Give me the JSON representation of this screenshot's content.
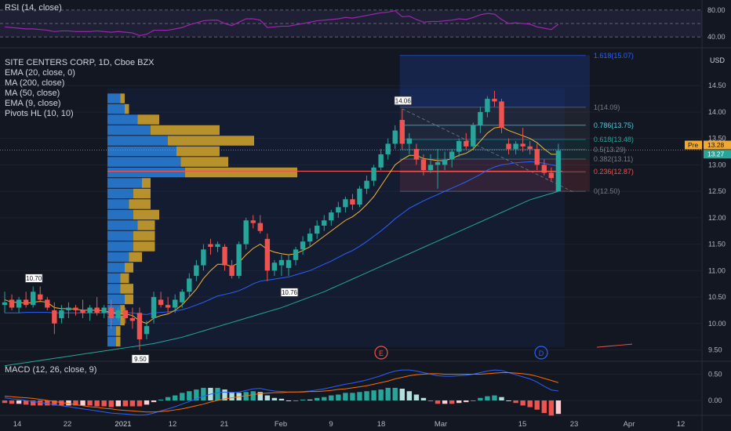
{
  "rsi": {
    "label": "RSI (14, close)",
    "ticks": [
      "80.00",
      "40.00"
    ]
  },
  "main": {
    "legend": [
      "SITE CENTERS CORP, 1D, Cboe BZX",
      "EMA (20, close, 0)",
      "MA (200, close)",
      "MA (50, close)",
      "EMA (9, close)",
      "Pivots HL (10, 10)"
    ],
    "currency": "USD",
    "y_ticks": [
      "14.50",
      "14.00",
      "13.50",
      "13.00",
      "12.50",
      "12.00",
      "11.50",
      "11.00",
      "10.50",
      "10.00",
      "9.50"
    ],
    "price_tags": {
      "pre_label": "Pre",
      "pre_value": "13.28",
      "last_value": "13.27"
    },
    "pivot_labels": [
      "10.70",
      "9.50",
      "10.76",
      "14.06"
    ],
    "fib_labels": [
      "1.618(15.07)",
      "1(14.09)",
      "0.786(13.75)",
      "0.618(13.48)",
      "0.5(13.29)",
      "0.382(13.11)",
      "0.236(12.87)",
      "0(12.50)"
    ],
    "event_markers": [
      "E",
      "D"
    ]
  },
  "macd": {
    "label": "MACD (12, 26, close, 9)",
    "ticks": [
      "0.50",
      "0.00"
    ]
  },
  "time_axis": [
    "14",
    "22",
    "2021",
    "12",
    "21",
    "Feb",
    "9",
    "18",
    "Mar",
    "15",
    "23",
    "Apr",
    "12"
  ],
  "colors": {
    "up": "#26a69a",
    "down": "#ef5350",
    "ema20": "#f7b731",
    "ma200": "#26a69a",
    "ma50": "#2962ff",
    "ema9": "#f7b731",
    "rsi": "#9c27b0",
    "macd": "#2962ff",
    "signal": "#ff6d00"
  },
  "chart_data": {
    "type": "candlestick",
    "title": "SITE CENTERS CORP, 1D, Cboe BZX",
    "ylabel": "USD",
    "ylim": [
      9.3,
      15.2
    ],
    "ohlc": [
      [
        10.35,
        10.6,
        10.2,
        10.4
      ],
      [
        10.45,
        10.55,
        10.25,
        10.3
      ],
      [
        10.3,
        10.5,
        10.2,
        10.45
      ],
      [
        10.45,
        10.6,
        10.3,
        10.35
      ],
      [
        10.35,
        10.7,
        10.3,
        10.6
      ],
      [
        10.55,
        10.7,
        10.4,
        10.45
      ],
      [
        10.45,
        10.5,
        10.25,
        10.3
      ],
      [
        10.25,
        10.4,
        9.8,
        10.0
      ],
      [
        10.1,
        10.35,
        10.0,
        10.25
      ],
      [
        10.25,
        10.4,
        10.1,
        10.3
      ],
      [
        10.3,
        10.35,
        10.15,
        10.25
      ],
      [
        10.25,
        10.45,
        10.1,
        10.2
      ],
      [
        10.2,
        10.35,
        10.05,
        10.3
      ],
      [
        10.3,
        10.5,
        10.15,
        10.2
      ],
      [
        10.2,
        10.35,
        10.1,
        10.3
      ],
      [
        10.3,
        10.45,
        9.9,
        10.1
      ],
      [
        10.1,
        10.3,
        10.05,
        10.25
      ],
      [
        10.25,
        10.3,
        10.0,
        10.1
      ],
      [
        10.1,
        10.3,
        9.9,
        10.05
      ],
      [
        10.2,
        10.3,
        9.5,
        9.7
      ],
      [
        9.8,
        10.05,
        9.7,
        9.95
      ],
      [
        10.1,
        10.6,
        10.0,
        10.5
      ],
      [
        10.45,
        10.6,
        10.3,
        10.35
      ],
      [
        10.35,
        10.5,
        10.2,
        10.3
      ],
      [
        10.3,
        10.55,
        10.2,
        10.45
      ],
      [
        10.4,
        10.65,
        10.3,
        10.6
      ],
      [
        10.6,
        10.95,
        10.5,
        10.85
      ],
      [
        10.9,
        11.2,
        10.8,
        11.1
      ],
      [
        11.1,
        11.5,
        11.0,
        11.4
      ],
      [
        11.5,
        11.6,
        11.3,
        11.45
      ],
      [
        11.45,
        11.55,
        11.35,
        11.5
      ],
      [
        11.45,
        11.5,
        11.0,
        11.1
      ],
      [
        11.1,
        11.2,
        10.85,
        10.9
      ],
      [
        10.9,
        11.55,
        10.85,
        11.5
      ],
      [
        11.5,
        12.0,
        11.4,
        11.95
      ],
      [
        11.95,
        12.05,
        11.8,
        11.9
      ],
      [
        11.9,
        12.05,
        11.7,
        11.75
      ],
      [
        11.6,
        11.7,
        10.8,
        11.0
      ],
      [
        11.0,
        11.2,
        10.9,
        11.15
      ],
      [
        11.1,
        11.3,
        10.9,
        11.2
      ],
      [
        11.05,
        11.3,
        10.9,
        11.2
      ],
      [
        11.2,
        11.45,
        11.1,
        11.4
      ],
      [
        11.4,
        11.65,
        11.3,
        11.55
      ],
      [
        11.55,
        11.8,
        11.45,
        11.7
      ],
      [
        11.7,
        11.95,
        11.6,
        11.85
      ],
      [
        11.85,
        12.05,
        11.75,
        11.95
      ],
      [
        11.95,
        12.15,
        11.85,
        12.1
      ],
      [
        12.1,
        12.3,
        12.0,
        12.2
      ],
      [
        12.2,
        12.4,
        12.1,
        12.35
      ],
      [
        12.35,
        12.45,
        12.15,
        12.25
      ],
      [
        12.25,
        12.6,
        12.2,
        12.55
      ],
      [
        12.55,
        12.8,
        12.45,
        12.7
      ],
      [
        12.7,
        13.0,
        12.6,
        12.95
      ],
      [
        12.95,
        13.3,
        12.9,
        13.2
      ],
      [
        13.2,
        13.5,
        13.1,
        13.4
      ],
      [
        13.4,
        13.75,
        13.3,
        13.65
      ],
      [
        13.85,
        14.06,
        13.3,
        13.4
      ],
      [
        13.4,
        13.6,
        13.2,
        13.5
      ],
      [
        13.3,
        13.4,
        13.0,
        13.1
      ],
      [
        13.1,
        13.2,
        12.8,
        12.9
      ],
      [
        12.9,
        13.2,
        12.85,
        13.0
      ],
      [
        13.0,
        13.3,
        12.55,
        13.05
      ],
      [
        13.0,
        13.25,
        12.9,
        13.1
      ],
      [
        13.1,
        13.3,
        12.95,
        13.25
      ],
      [
        13.25,
        13.5,
        13.15,
        13.45
      ],
      [
        13.45,
        13.6,
        13.3,
        13.35
      ],
      [
        13.35,
        13.8,
        13.3,
        13.75
      ],
      [
        13.75,
        14.1,
        13.6,
        14.0
      ],
      [
        14.0,
        14.3,
        13.9,
        14.25
      ],
      [
        14.25,
        14.4,
        14.1,
        14.2
      ],
      [
        14.2,
        14.25,
        13.6,
        13.7
      ],
      [
        13.4,
        13.5,
        13.2,
        13.3
      ],
      [
        13.3,
        13.45,
        13.2,
        13.4
      ],
      [
        13.4,
        13.7,
        13.25,
        13.35
      ],
      [
        13.35,
        13.45,
        13.2,
        13.3
      ],
      [
        13.3,
        13.4,
        12.9,
        13.0
      ],
      [
        13.0,
        13.1,
        12.8,
        12.85
      ],
      [
        12.85,
        12.95,
        12.7,
        12.75
      ],
      [
        12.5,
        13.4,
        12.5,
        13.27
      ]
    ],
    "ema9": [
      10.45,
      10.4,
      10.4,
      10.38,
      10.4,
      10.42,
      10.4,
      10.3,
      10.28,
      10.28,
      10.27,
      10.25,
      10.25,
      10.25,
      10.24,
      10.2,
      10.2,
      10.18,
      10.15,
      10.05,
      10.0,
      10.1,
      10.15,
      10.18,
      10.25,
      10.35,
      10.5,
      10.65,
      10.85,
      11.0,
      11.12,
      11.12,
      11.08,
      11.15,
      11.3,
      11.42,
      11.5,
      11.4,
      11.35,
      11.32,
      11.3,
      11.32,
      11.38,
      11.45,
      11.55,
      11.65,
      11.75,
      11.85,
      11.95,
      12.02,
      12.12,
      12.25,
      12.4,
      12.6,
      12.8,
      13.0,
      13.1,
      13.18,
      13.18,
      13.12,
      13.1,
      13.08,
      13.08,
      13.12,
      13.18,
      13.22,
      13.3,
      13.45,
      13.6,
      13.7,
      13.72,
      13.65,
      13.6,
      13.55,
      13.5,
      13.42,
      13.3,
      13.2,
      13.2
    ],
    "ma50": [
      10.2,
      10.2,
      10.2,
      10.21,
      10.21,
      10.21,
      10.21,
      10.2,
      10.2,
      10.2,
      10.2,
      10.2,
      10.2,
      10.2,
      10.2,
      10.2,
      10.2,
      10.2,
      10.2,
      10.18,
      10.17,
      10.2,
      10.21,
      10.22,
      10.24,
      10.26,
      10.3,
      10.35,
      10.4,
      10.46,
      10.52,
      10.55,
      10.58,
      10.62,
      10.68,
      10.75,
      10.8,
      10.82,
      10.84,
      10.86,
      10.88,
      10.92,
      10.96,
      11.0,
      11.06,
      11.12,
      11.18,
      11.25,
      11.32,
      11.38,
      11.46,
      11.55,
      11.65,
      11.75,
      11.86,
      11.98,
      12.08,
      12.18,
      12.25,
      12.32,
      12.38,
      12.44,
      12.5,
      12.56,
      12.62,
      12.68,
      12.75,
      12.82,
      12.9,
      12.96,
      13.0,
      13.02,
      13.04,
      13.05,
      13.06,
      13.05,
      13.03,
      13.0,
      12.98
    ],
    "ma200": [
      9.2,
      9.22,
      9.24,
      9.26,
      9.28,
      9.3,
      9.32,
      9.34,
      9.36,
      9.38,
      9.4,
      9.42,
      9.44,
      9.46,
      9.48,
      9.5,
      9.52,
      9.54,
      9.56,
      9.58,
      9.6,
      9.62,
      9.65,
      9.68,
      9.71,
      9.74,
      9.78,
      9.82,
      9.86,
      9.9,
      9.94,
      9.98,
      10.02,
      10.06,
      10.1,
      10.14,
      10.18,
      10.22,
      10.26,
      10.3,
      10.35,
      10.4,
      10.45,
      10.5,
      10.55,
      10.6,
      10.66,
      10.72,
      10.78,
      10.84,
      10.9,
      10.96,
      11.02,
      11.08,
      11.14,
      11.2,
      11.26,
      11.32,
      11.38,
      11.44,
      11.5,
      11.56,
      11.62,
      11.68,
      11.74,
      11.8,
      11.86,
      11.92,
      11.98,
      12.04,
      12.1,
      12.16,
      12.22,
      12.28,
      12.34,
      12.38,
      12.42,
      12.46,
      12.5
    ],
    "ma200_future": [
      9.55,
      9.57,
      9.59,
      9.61
    ],
    "pivots": [
      {
        "price": 10.7,
        "type": "high"
      },
      {
        "price": 9.5,
        "type": "low"
      },
      {
        "price": 10.76,
        "type": "low"
      },
      {
        "price": 14.06,
        "type": "high"
      }
    ],
    "fibonacci": [
      {
        "level": 1.618,
        "price": 15.07
      },
      {
        "level": 1,
        "price": 14.09
      },
      {
        "level": 0.786,
        "price": 13.75
      },
      {
        "level": 0.618,
        "price": 13.48
      },
      {
        "level": 0.5,
        "price": 13.29
      },
      {
        "level": 0.382,
        "price": 13.11
      },
      {
        "level": 0.236,
        "price": 12.87
      },
      {
        "level": 0,
        "price": 12.5
      }
    ],
    "volume_profile": [
      {
        "price": 14.25,
        "up": 3,
        "down": 1
      },
      {
        "price": 14.05,
        "up": 4,
        "down": 1
      },
      {
        "price": 13.85,
        "up": 7,
        "down": 5
      },
      {
        "price": 13.65,
        "up": 10,
        "down": 16
      },
      {
        "price": 13.45,
        "up": 14,
        "down": 20
      },
      {
        "price": 13.25,
        "up": 16,
        "down": 10
      },
      {
        "price": 13.05,
        "up": 17,
        "down": 11
      },
      {
        "price": 12.85,
        "up": 18,
        "down": 26
      },
      {
        "price": 12.65,
        "up": 8,
        "down": 2
      },
      {
        "price": 12.45,
        "up": 6,
        "down": 4
      },
      {
        "price": 12.25,
        "up": 5,
        "down": 5
      },
      {
        "price": 12.05,
        "up": 6,
        "down": 6
      },
      {
        "price": 11.85,
        "up": 7,
        "down": 4
      },
      {
        "price": 11.65,
        "up": 6,
        "down": 5
      },
      {
        "price": 11.45,
        "up": 6,
        "down": 5
      },
      {
        "price": 11.25,
        "up": 5,
        "down": 3
      },
      {
        "price": 11.05,
        "up": 4,
        "down": 2
      },
      {
        "price": 10.85,
        "up": 3,
        "down": 2
      },
      {
        "price": 10.65,
        "up": 3,
        "down": 3
      },
      {
        "price": 10.45,
        "up": 4,
        "down": 2
      },
      {
        "price": 10.25,
        "up": 3,
        "down": 1
      },
      {
        "price": 10.05,
        "up": 3,
        "down": 1
      },
      {
        "price": 9.85,
        "up": 2,
        "down": 1
      },
      {
        "price": 9.65,
        "up": 2,
        "down": 1
      }
    ],
    "point_of_control": 12.88,
    "macd_line": [
      0.05,
      0.03,
      0.02,
      0.0,
      -0.02,
      -0.04,
      -0.06,
      -0.08,
      -0.1,
      -0.12,
      -0.14,
      -0.16,
      -0.18,
      -0.2,
      -0.22,
      -0.24,
      -0.25,
      -0.26,
      -0.27,
      -0.28,
      -0.27,
      -0.24,
      -0.2,
      -0.16,
      -0.12,
      -0.07,
      -0.02,
      0.03,
      0.08,
      0.12,
      0.15,
      0.16,
      0.15,
      0.16,
      0.19,
      0.22,
      0.23,
      0.2,
      0.18,
      0.17,
      0.16,
      0.16,
      0.17,
      0.18,
      0.2,
      0.22,
      0.25,
      0.28,
      0.31,
      0.33,
      0.36,
      0.39,
      0.43,
      0.47,
      0.52,
      0.56,
      0.58,
      0.58,
      0.56,
      0.53,
      0.5,
      0.47,
      0.46,
      0.46,
      0.47,
      0.48,
      0.5,
      0.53,
      0.56,
      0.58,
      0.57,
      0.53,
      0.49,
      0.45,
      0.41,
      0.35,
      0.27,
      0.2,
      0.18
    ],
    "macd_signal": [
      0.08,
      0.07,
      0.06,
      0.05,
      0.04,
      0.02,
      0.0,
      -0.02,
      -0.04,
      -0.06,
      -0.08,
      -0.1,
      -0.12,
      -0.13,
      -0.15,
      -0.16,
      -0.18,
      -0.19,
      -0.2,
      -0.21,
      -0.22,
      -0.22,
      -0.21,
      -0.2,
      -0.18,
      -0.16,
      -0.13,
      -0.1,
      -0.07,
      -0.03,
      0.0,
      0.03,
      0.05,
      0.07,
      0.09,
      0.11,
      0.13,
      0.14,
      0.15,
      0.15,
      0.16,
      0.16,
      0.16,
      0.17,
      0.17,
      0.18,
      0.19,
      0.21,
      0.22,
      0.24,
      0.26,
      0.28,
      0.31,
      0.34,
      0.37,
      0.41,
      0.44,
      0.47,
      0.49,
      0.5,
      0.51,
      0.51,
      0.5,
      0.5,
      0.5,
      0.5,
      0.5,
      0.5,
      0.51,
      0.52,
      0.53,
      0.53,
      0.52,
      0.51,
      0.49,
      0.46,
      0.42,
      0.38,
      0.34
    ],
    "rsi_values": [
      55,
      54,
      53,
      52,
      52,
      51,
      50,
      48,
      49,
      49,
      48,
      48,
      48,
      49,
      48,
      47,
      48,
      47,
      46,
      42,
      44,
      50,
      50,
      50,
      52,
      54,
      58,
      61,
      64,
      65,
      65,
      60,
      57,
      62,
      67,
      67,
      65,
      54,
      55,
      56,
      56,
      58,
      60,
      62,
      64,
      65,
      66,
      67,
      69,
      68,
      70,
      72,
      74,
      76,
      77,
      79,
      70,
      71,
      66,
      62,
      63,
      63,
      64,
      65,
      67,
      66,
      69,
      73,
      75,
      74,
      66,
      60,
      61,
      60,
      59,
      55,
      53,
      51,
      59
    ],
    "rsi_ylim": [
      25,
      95
    ]
  }
}
